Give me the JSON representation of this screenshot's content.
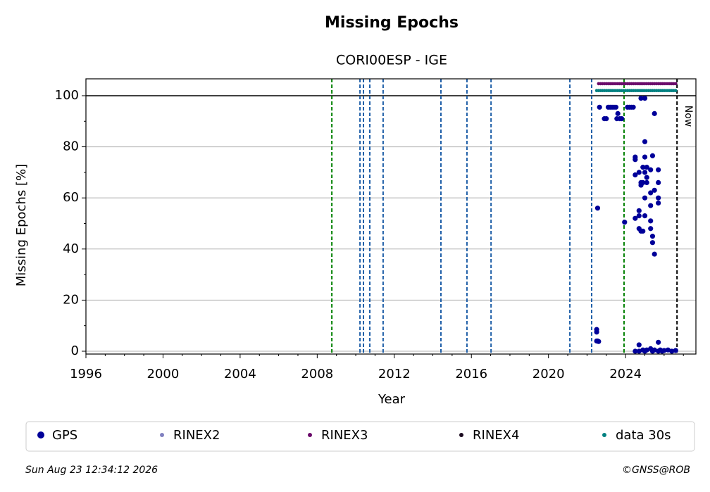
{
  "chart_data": {
    "type": "scatter",
    "title": "Missing Epochs",
    "subtitle": "CORI00ESP - IGE",
    "x_label": "Year",
    "y_label": "Missing Epochs [%]",
    "xlim": [
      1996,
      2027.65
    ],
    "ylim": [
      -1.1,
      106.6
    ],
    "xticks": [
      1996,
      2000,
      2004,
      2008,
      2012,
      2016,
      2020,
      2024
    ],
    "xminorticks": [
      1997,
      1998,
      1999,
      2001,
      2002,
      2003,
      2005,
      2006,
      2007,
      2009,
      2010,
      2011,
      2013,
      2014,
      2015,
      2017,
      2018,
      2019,
      2021,
      2022,
      2023,
      2025,
      2026,
      2027
    ],
    "yticks": [
      0,
      20,
      40,
      60,
      80,
      100
    ],
    "yminorticks": [
      10,
      30,
      50,
      70,
      90
    ],
    "grid": true,
    "reference_line": 100,
    "event_lines": [
      {
        "x": 2008.76,
        "color": "#008000"
      },
      {
        "x": 2010.22,
        "color": "#1f5fa8"
      },
      {
        "x": 2010.4,
        "color": "#1f5fa8"
      },
      {
        "x": 2010.73,
        "color": "#1f5fa8"
      },
      {
        "x": 2011.42,
        "color": "#1f5fa8"
      },
      {
        "x": 2014.42,
        "color": "#1f5fa8"
      },
      {
        "x": 2015.77,
        "color": "#1f5fa8"
      },
      {
        "x": 2017.02,
        "color": "#1f5fa8"
      },
      {
        "x": 2021.11,
        "color": "#1f5fa8"
      },
      {
        "x": 2022.24,
        "color": "#1f5fa8"
      },
      {
        "x": 2023.92,
        "color": "#008000"
      }
    ],
    "now": {
      "x": 2026.67,
      "label": "Now"
    },
    "series": [
      {
        "name": "GPS",
        "color": "#000099",
        "x": [
          2022.5,
          2022.5,
          2022.5,
          2022.55,
          2022.6,
          2022.55,
          2022.65,
          2022.9,
          2023.0,
          2023.1,
          2023.2,
          2023.3,
          2023.4,
          2023.5,
          2023.55,
          2023.6,
          2023.7,
          2023.8,
          2023.95,
          2024.1,
          2024.2,
          2024.3,
          2024.4,
          2024.5,
          2024.5,
          2024.5,
          2024.5,
          2024.5,
          2024.7,
          2024.7,
          2024.7,
          2024.7,
          2024.7,
          2024.7,
          2024.8,
          2024.8,
          2024.8,
          2024.8,
          2024.9,
          2024.9,
          2024.9,
          2024.9,
          2025.0,
          2025.0,
          2025.0,
          2025.0,
          2025.0,
          2025.0,
          2025.0,
          2025.1,
          2025.1,
          2025.1,
          2025.1,
          2025.3,
          2025.3,
          2025.3,
          2025.3,
          2025.3,
          2025.3,
          2025.4,
          2025.4,
          2025.4,
          2025.4,
          2025.5,
          2025.5,
          2025.5,
          2025.5,
          2025.7,
          2025.7,
          2025.7,
          2025.7,
          2025.7,
          2025.7,
          2025.8,
          2025.9,
          2026.0,
          2026.2,
          2026.4,
          2026.6
        ],
        "values": [
          8.5,
          7.5,
          4,
          4,
          3.8,
          56,
          95.5,
          91,
          91,
          95.5,
          95.5,
          95.5,
          95.5,
          95.5,
          91,
          93,
          91,
          91,
          50.5,
          95.5,
          95.5,
          95.5,
          95.5,
          76,
          75,
          69,
          52,
          0,
          70,
          55,
          53,
          48,
          2.5,
          0,
          99,
          66,
          65,
          47,
          72,
          66,
          47,
          0.5,
          99,
          82,
          76,
          70,
          60,
          53,
          0,
          72,
          68,
          66,
          0.5,
          71,
          62,
          51,
          48,
          57,
          1,
          76.5,
          45,
          42.5,
          0,
          93,
          63,
          38,
          0.5,
          71,
          66,
          60,
          58,
          3.5,
          0,
          0.5,
          0,
          0.3,
          0.5,
          0,
          0.3
        ]
      },
      {
        "name": "RINEX2",
        "color": "#8080c0",
        "x": [],
        "values": []
      },
      {
        "name": "RINEX3",
        "color": "#6a0a6a",
        "x": [
          2022.6,
          2022.7,
          2022.8,
          2022.9,
          2023.0,
          2023.1,
          2023.2,
          2023.3,
          2023.4,
          2023.5,
          2023.6,
          2023.7,
          2023.8,
          2023.9,
          2024.0,
          2024.1,
          2024.2,
          2024.3,
          2024.4,
          2024.5,
          2024.6,
          2024.7,
          2024.8,
          2024.9,
          2025.0,
          2025.1,
          2025.2,
          2025.3,
          2025.4,
          2025.5,
          2025.6,
          2025.7,
          2025.8,
          2025.9,
          2026.0,
          2026.1,
          2026.2,
          2026.3,
          2026.4,
          2026.5,
          2026.6
        ],
        "values": [
          104.7,
          104.7,
          104.7,
          104.7,
          104.7,
          104.7,
          104.7,
          104.7,
          104.7,
          104.7,
          104.7,
          104.7,
          104.7,
          104.7,
          104.7,
          104.7,
          104.7,
          104.7,
          104.7,
          104.7,
          104.7,
          104.7,
          104.7,
          104.7,
          104.7,
          104.7,
          104.7,
          104.7,
          104.7,
          104.7,
          104.7,
          104.7,
          104.7,
          104.7,
          104.7,
          104.7,
          104.7,
          104.7,
          104.7,
          104.7,
          104.7
        ]
      },
      {
        "name": "RINEX4",
        "color": "#1a0a20",
        "x": [],
        "values": []
      },
      {
        "name": "data 30s",
        "color": "#008080",
        "x": [
          2022.5,
          2022.6,
          2022.7,
          2022.8,
          2022.9,
          2023.0,
          2023.1,
          2023.2,
          2023.3,
          2023.4,
          2023.5,
          2023.6,
          2023.7,
          2023.8,
          2023.9,
          2024.0,
          2024.1,
          2024.2,
          2024.3,
          2024.4,
          2024.5,
          2024.6,
          2024.7,
          2024.8,
          2024.9,
          2025.0,
          2025.1,
          2025.2,
          2025.3,
          2025.4,
          2025.5,
          2025.6,
          2025.7,
          2025.8,
          2025.9,
          2026.0,
          2026.1,
          2026.2,
          2026.3,
          2026.4,
          2026.5,
          2026.6
        ],
        "values": [
          102,
          102,
          102,
          102,
          102,
          102,
          102,
          102,
          102,
          102,
          102,
          102,
          102,
          102,
          102,
          102,
          102,
          102,
          102,
          102,
          102,
          102,
          102,
          102,
          102,
          102,
          102,
          102,
          102,
          102,
          102,
          102,
          102,
          102,
          102,
          102,
          102,
          102,
          102,
          102,
          102,
          102
        ]
      }
    ]
  },
  "footer": {
    "timestamp": "Sun Aug 23 12:34:12 2026",
    "credit": "©GNSS@ROB"
  }
}
